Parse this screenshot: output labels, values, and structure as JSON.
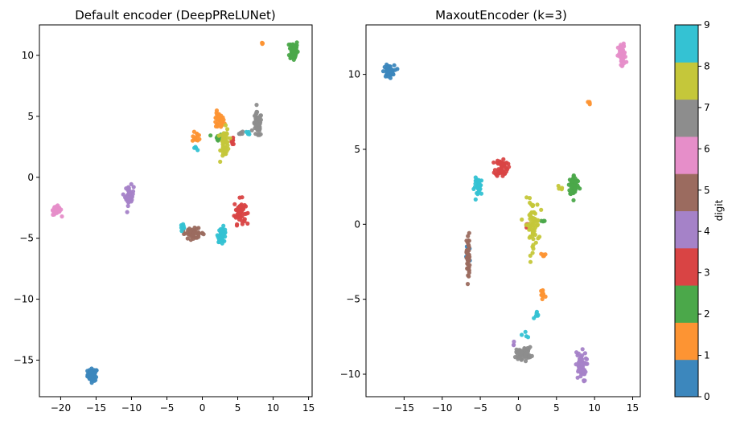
{
  "chart_data": [
    {
      "type": "scatter",
      "title": "Default encoder (DeepPReLUNet)",
      "xlim": [
        -23,
        15.5
      ],
      "ylim": [
        -18,
        12.5
      ],
      "xticks": [
        -20,
        -15,
        -10,
        -5,
        0,
        5,
        10,
        15
      ],
      "yticks": [
        -15,
        -10,
        -5,
        0,
        5,
        10
      ],
      "grid": false,
      "clusters": [
        {
          "digit": 0,
          "x": -15.5,
          "y": -16.2,
          "sx": 0.35,
          "sy": 0.25,
          "n": 60
        },
        {
          "digit": 1,
          "x": 2.3,
          "y": 4.6,
          "sx": 0.4,
          "sy": 0.35,
          "n": 35
        },
        {
          "digit": 1,
          "x": -0.8,
          "y": 3.3,
          "sx": 0.3,
          "sy": 0.2,
          "n": 12
        },
        {
          "digit": 1,
          "x": 8.5,
          "y": 11.0,
          "sx": 0.1,
          "sy": 0.05,
          "n": 4
        },
        {
          "digit": 2,
          "x": 12.9,
          "y": 10.4,
          "sx": 0.3,
          "sy": 0.45,
          "n": 55
        },
        {
          "digit": 2,
          "x": 2.2,
          "y": 3.2,
          "sx": 0.3,
          "sy": 0.2,
          "n": 10
        },
        {
          "digit": 3,
          "x": 5.3,
          "y": -2.8,
          "sx": 0.4,
          "sy": 0.5,
          "n": 50
        },
        {
          "digit": 3,
          "x": 4.3,
          "y": 2.9,
          "sx": 0.2,
          "sy": 0.2,
          "n": 8
        },
        {
          "digit": 4,
          "x": -10.3,
          "y": -1.5,
          "sx": 0.3,
          "sy": 0.4,
          "n": 40
        },
        {
          "digit": 5,
          "x": -1.3,
          "y": -4.6,
          "sx": 0.8,
          "sy": 0.2,
          "n": 40
        },
        {
          "digit": 6,
          "x": -20.5,
          "y": -2.7,
          "sx": 0.3,
          "sy": 0.2,
          "n": 50
        },
        {
          "digit": 7,
          "x": 7.8,
          "y": 4.3,
          "sx": 0.3,
          "sy": 0.5,
          "n": 60
        },
        {
          "digit": 7,
          "x": 5.4,
          "y": 3.6,
          "sx": 0.2,
          "sy": 0.1,
          "n": 6
        },
        {
          "digit": 8,
          "x": 3.2,
          "y": 2.8,
          "sx": 0.3,
          "sy": 0.6,
          "n": 50
        },
        {
          "digit": 9,
          "x": 2.8,
          "y": -4.7,
          "sx": 0.3,
          "sy": 0.3,
          "n": 40
        },
        {
          "digit": 9,
          "x": -2.8,
          "y": -4.0,
          "sx": 0.2,
          "sy": 0.1,
          "n": 8
        },
        {
          "digit": 9,
          "x": -0.9,
          "y": 2.4,
          "sx": 0.1,
          "sy": 0.1,
          "n": 4
        },
        {
          "digit": 9,
          "x": 6.4,
          "y": 3.6,
          "sx": 0.2,
          "sy": 0.1,
          "n": 4
        }
      ]
    },
    {
      "type": "scatter",
      "title": "MaxoutEncoder (k=3)",
      "xlim": [
        -20,
        16
      ],
      "ylim": [
        -11.5,
        13.3
      ],
      "xticks": [
        -15,
        -10,
        -5,
        0,
        5,
        10,
        15
      ],
      "yticks": [
        -10,
        -5,
        0,
        5,
        10
      ],
      "grid": false,
      "clusters": [
        {
          "digit": 0,
          "x": -17.0,
          "y": 10.2,
          "sx": 0.35,
          "sy": 0.2,
          "n": 60
        },
        {
          "digit": 0,
          "x": -6.6,
          "y": -2.0,
          "sx": 0.12,
          "sy": 0.45,
          "n": 6
        },
        {
          "digit": 1,
          "x": 9.3,
          "y": 8.1,
          "sx": 0.1,
          "sy": 0.05,
          "n": 4
        },
        {
          "digit": 1,
          "x": 3.2,
          "y": -4.7,
          "sx": 0.2,
          "sy": 0.3,
          "n": 15
        },
        {
          "digit": 1,
          "x": 3.2,
          "y": -2.0,
          "sx": 0.2,
          "sy": 0.2,
          "n": 6
        },
        {
          "digit": 2,
          "x": 7.3,
          "y": 2.6,
          "sx": 0.35,
          "sy": 0.35,
          "n": 55
        },
        {
          "digit": 2,
          "x": 3.3,
          "y": 0.2,
          "sx": 0.1,
          "sy": 0.1,
          "n": 4
        },
        {
          "digit": 3,
          "x": -2.2,
          "y": 3.8,
          "sx": 0.4,
          "sy": 0.3,
          "n": 50
        },
        {
          "digit": 3,
          "x": 1.0,
          "y": -0.1,
          "sx": 0.2,
          "sy": 0.1,
          "n": 6
        },
        {
          "digit": 4,
          "x": 8.2,
          "y": -9.5,
          "sx": 0.35,
          "sy": 0.5,
          "n": 55
        },
        {
          "digit": 4,
          "x": -0.7,
          "y": -7.9,
          "sx": 0.1,
          "sy": 0.1,
          "n": 3
        },
        {
          "digit": 5,
          "x": -6.6,
          "y": -2.2,
          "sx": 0.1,
          "sy": 0.8,
          "n": 50
        },
        {
          "digit": 6,
          "x": 13.6,
          "y": 11.2,
          "sx": 0.25,
          "sy": 0.4,
          "n": 50
        },
        {
          "digit": 7,
          "x": 0.7,
          "y": -8.6,
          "sx": 0.5,
          "sy": 0.2,
          "n": 60
        },
        {
          "digit": 8,
          "x": 1.8,
          "y": 0.0,
          "sx": 0.45,
          "sy": 0.8,
          "n": 70
        },
        {
          "digit": 8,
          "x": 5.6,
          "y": 2.4,
          "sx": 0.2,
          "sy": 0.1,
          "n": 4
        },
        {
          "digit": 9,
          "x": -5.2,
          "y": 2.5,
          "sx": 0.3,
          "sy": 0.3,
          "n": 35
        },
        {
          "digit": 9,
          "x": 2.6,
          "y": -6.0,
          "sx": 0.2,
          "sy": 0.15,
          "n": 6
        },
        {
          "digit": 9,
          "x": 1.0,
          "y": -7.4,
          "sx": 0.15,
          "sy": 0.15,
          "n": 4
        }
      ]
    }
  ],
  "colorbar": {
    "label": "digit",
    "ticks": [
      0,
      1,
      2,
      3,
      4,
      5,
      6,
      7,
      8,
      9
    ],
    "colors": [
      "#3c87bd",
      "#fd9433",
      "#4ba84a",
      "#d94444",
      "#a582c8",
      "#9b6b5f",
      "#e68ec9",
      "#8d8d8d",
      "#c5c73a",
      "#34c2d3"
    ]
  }
}
